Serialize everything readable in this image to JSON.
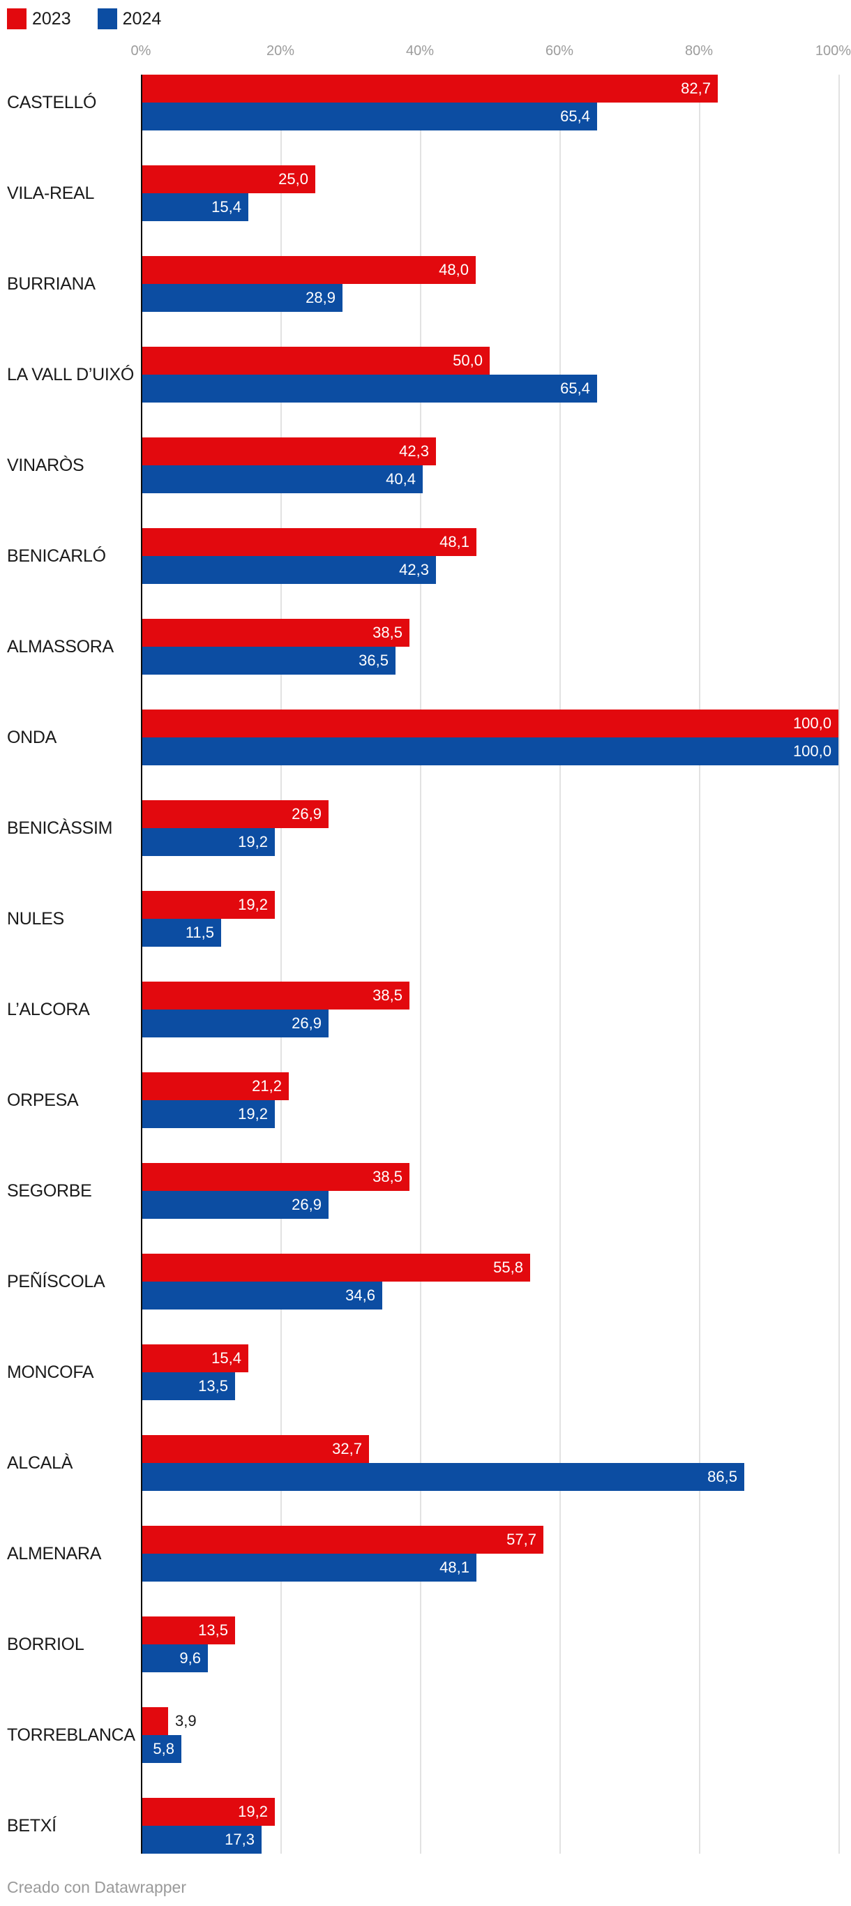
{
  "legend": {
    "items": [
      {
        "label": "2023",
        "color": "#e2090e"
      },
      {
        "label": "2024",
        "color": "#0c4da2"
      }
    ]
  },
  "axis": {
    "ticks": [
      "0%",
      "20%",
      "40%",
      "60%",
      "80%",
      "100%"
    ],
    "tick_values": [
      0,
      20,
      40,
      60,
      80,
      100
    ]
  },
  "chart_data": {
    "type": "bar",
    "orientation": "horizontal",
    "title": "",
    "xlabel": "",
    "ylabel": "",
    "xlim": [
      0,
      100
    ],
    "grid": true,
    "legend_position": "top-left",
    "value_decimal_separator": ",",
    "categories": [
      "CASTELLÓ",
      "VILA-REAL",
      "BURRIANA",
      "LA VALL D’UIXÓ",
      "VINARÒS",
      "BENICARLÓ",
      "ALMASSORA",
      "ONDA",
      "BENICÀSSIM",
      "NULES",
      "L’ALCORA",
      "ORPESA",
      "SEGORBE",
      "PEÑÍSCOLA",
      "MONCOFA",
      "ALCALÀ",
      "ALMENARA",
      "BORRIOL",
      "TORREBLANCA",
      "BETXÍ"
    ],
    "series": [
      {
        "name": "2023",
        "color": "#e2090e",
        "values": [
          82.7,
          25.0,
          48.0,
          50.0,
          42.3,
          48.1,
          38.5,
          100.0,
          26.9,
          19.2,
          38.5,
          21.2,
          38.5,
          55.8,
          15.4,
          32.7,
          57.7,
          13.5,
          3.9,
          19.2
        ],
        "labels": [
          "82,7",
          "25,0",
          "48,0",
          "50,0",
          "42,3",
          "48,1",
          "38,5",
          "100,0",
          "26,9",
          "19,2",
          "38,5",
          "21,2",
          "38,5",
          "55,8",
          "15,4",
          "32,7",
          "57,7",
          "13,5",
          "3,9",
          "19,2"
        ]
      },
      {
        "name": "2024",
        "color": "#0c4da2",
        "values": [
          65.4,
          15.4,
          28.9,
          65.4,
          40.4,
          42.3,
          36.5,
          100.0,
          19.2,
          11.5,
          26.9,
          19.2,
          26.9,
          34.6,
          13.5,
          86.5,
          48.1,
          9.6,
          5.8,
          17.3
        ],
        "labels": [
          "65,4",
          "15,4",
          "28,9",
          "65,4",
          "40,4",
          "42,3",
          "36,5",
          "100,0",
          "19,2",
          "11,5",
          "26,9",
          "19,2",
          "26,9",
          "34,6",
          "13,5",
          "86,5",
          "48,1",
          "9,6",
          "5,8",
          "17,3"
        ]
      }
    ]
  },
  "footer": {
    "credit": "Creado con Datawrapper"
  }
}
